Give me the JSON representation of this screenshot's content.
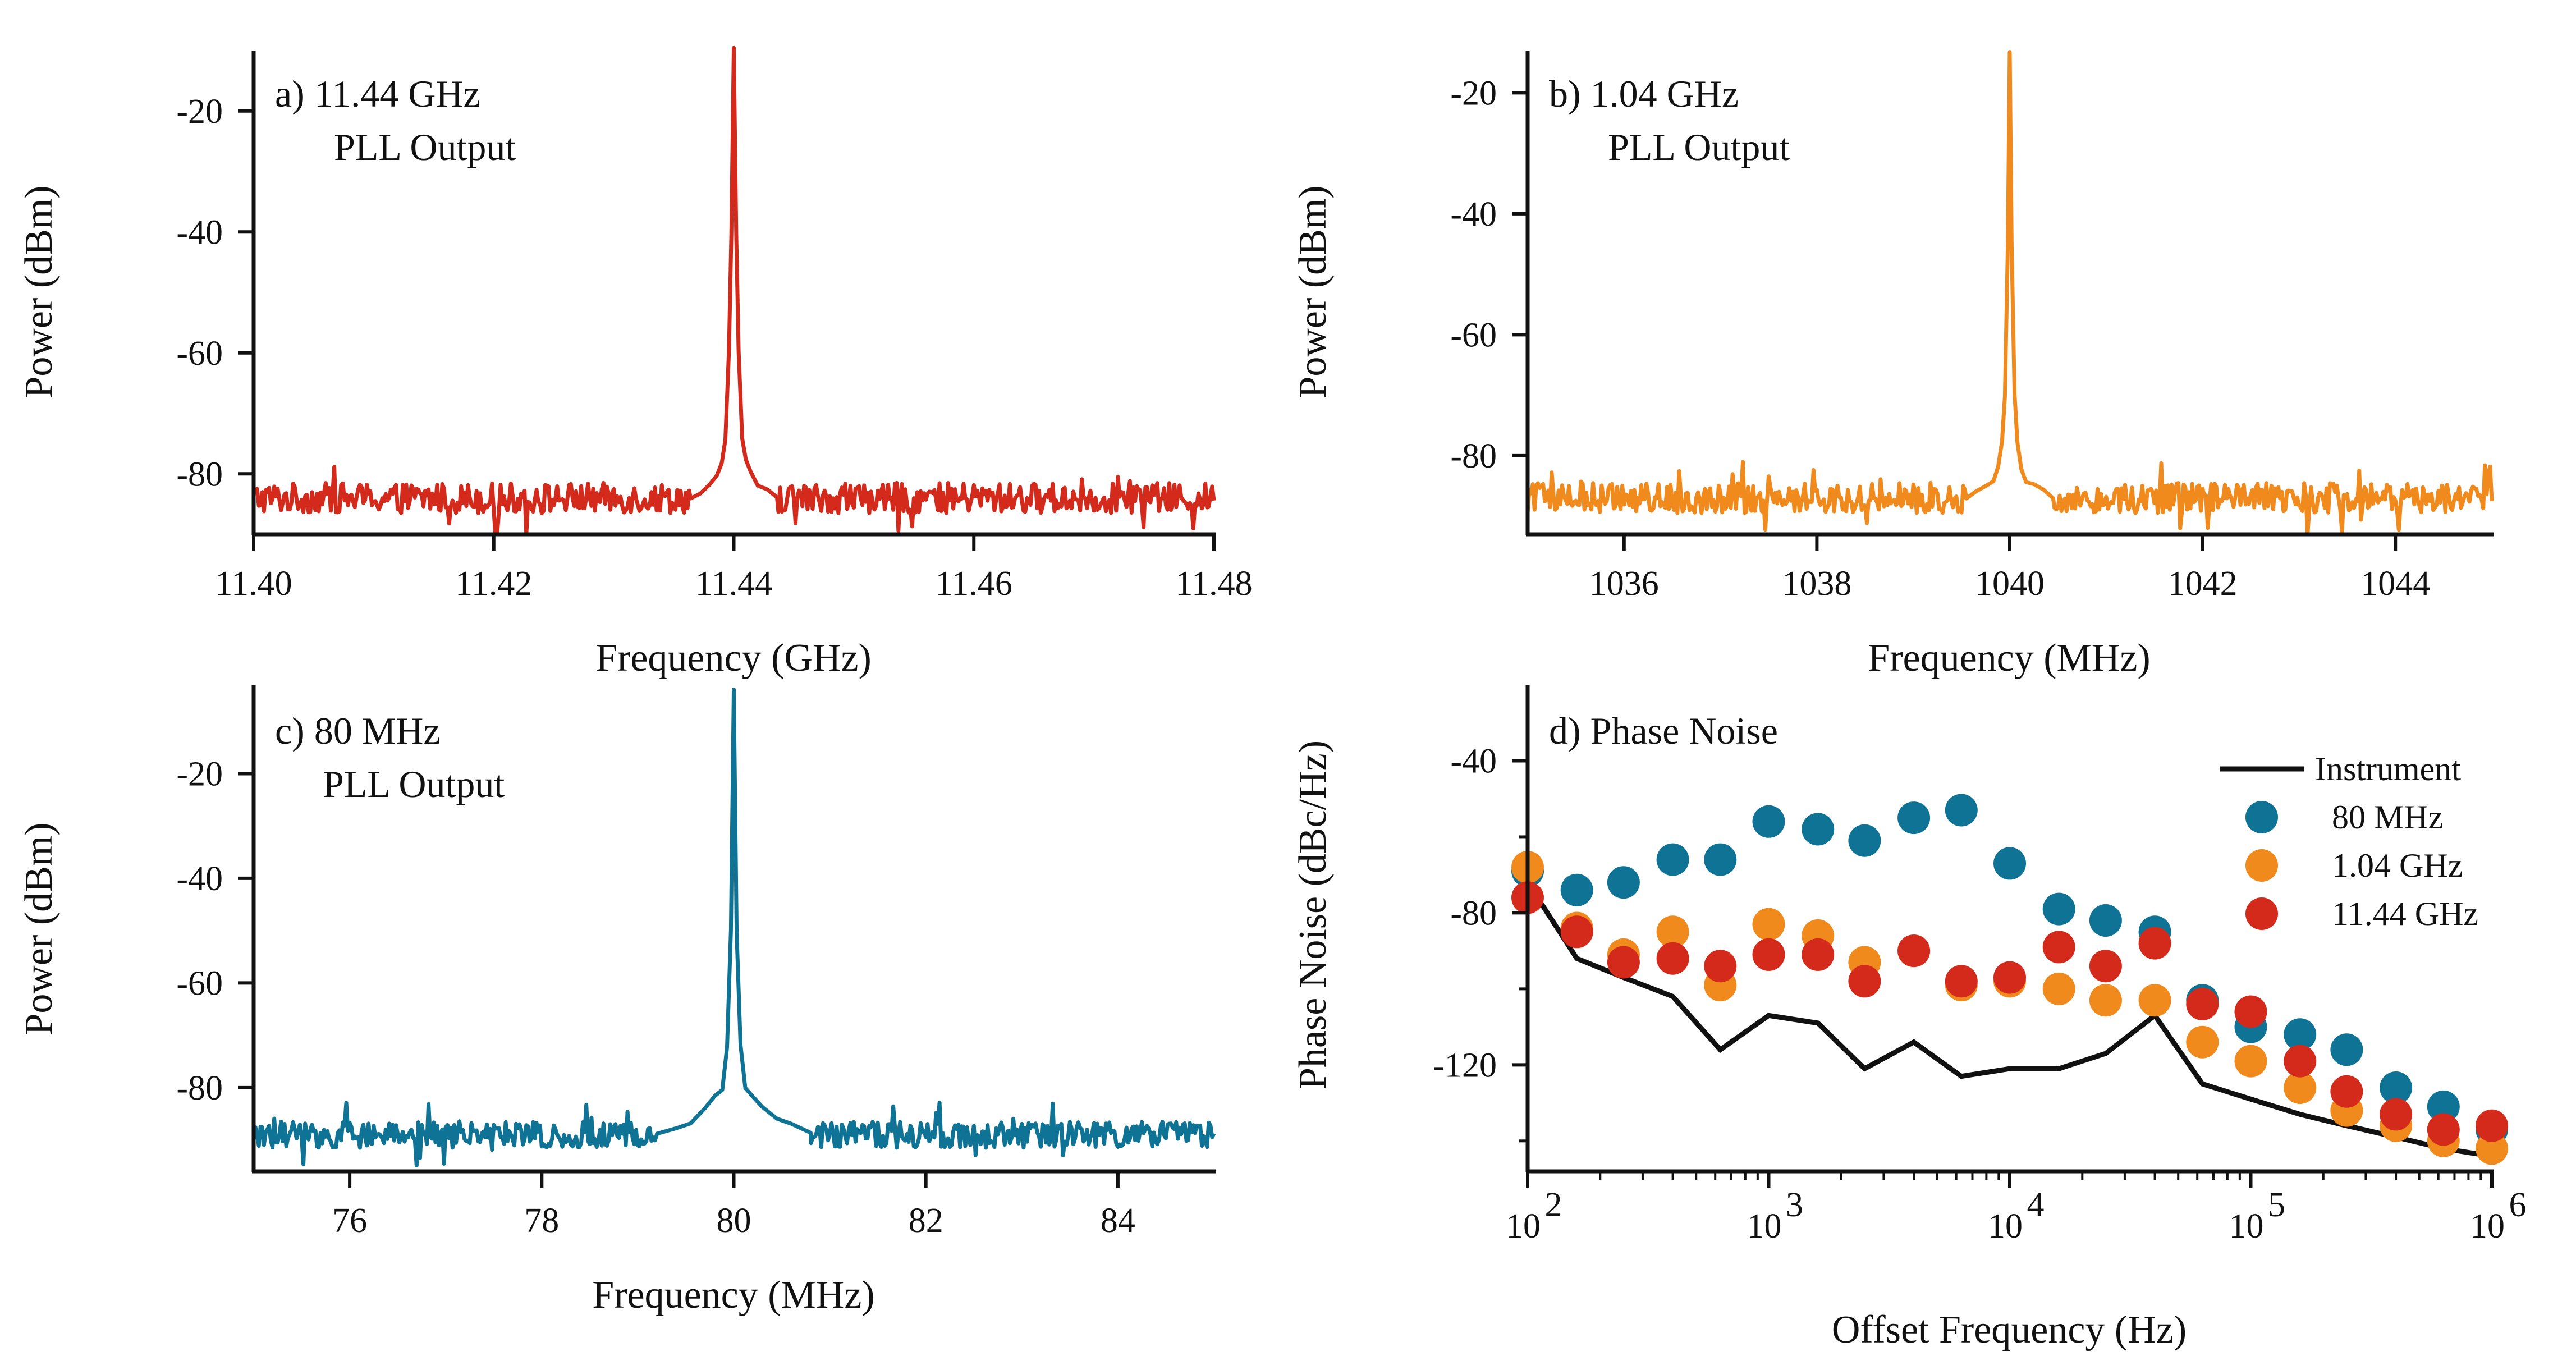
{
  "figure": {
    "colors": {
      "a": "#d42a1c",
      "b": "#f08a1d",
      "c": "#0e7394",
      "instrument": "#111111"
    }
  },
  "chart_data": [
    {
      "id": "a",
      "type": "line",
      "panel_label": "a) 11.44 GHz",
      "panel_sublabel": "PLL Output",
      "xlabel": "Frequency (GHz)",
      "ylabel": "Power (dBm)",
      "xlim": [
        11.4,
        11.48
      ],
      "ylim": [
        -90,
        -10
      ],
      "xticks": [
        11.4,
        11.42,
        11.44,
        11.46,
        11.48
      ],
      "xtick_labels": [
        "11.40",
        "11.42",
        "11.44",
        "11.46",
        "11.48"
      ],
      "yticks": [
        -80,
        -60,
        -40,
        -20
      ],
      "ytick_labels": [
        "-80",
        "-60",
        "-40",
        "-20"
      ],
      "series": [
        {
          "name": "11.44 GHz PLL Output",
          "color": "#d42a1c",
          "center": 11.44,
          "peak": -10,
          "noise_floor": -84,
          "noise_span": 2.5,
          "x": [
            11.4364,
            11.4372,
            11.438,
            11.4386,
            11.439,
            11.4393,
            11.4396,
            11.4398,
            11.44,
            11.4402,
            11.4404,
            11.4407,
            11.441,
            11.4414,
            11.442,
            11.4428,
            11.4436
          ],
          "y": [
            -84,
            -83,
            -82,
            -80,
            -78,
            -74,
            -60,
            -40,
            -10,
            -40,
            -60,
            -74,
            -78,
            -80,
            -82,
            -83,
            -84
          ]
        }
      ]
    },
    {
      "id": "b",
      "type": "line",
      "panel_label": "b) 1.04 GHz",
      "panel_sublabel": "PLL Output",
      "xlabel": "Frequency (MHz)",
      "ylabel": "Power (dBm)",
      "xlim": [
        1035,
        1045
      ],
      "ylim": [
        -93,
        -13
      ],
      "xticks": [
        1036,
        1038,
        1040,
        1042,
        1044
      ],
      "xtick_labels": [
        "1036",
        "1038",
        "1040",
        "1042",
        "1044"
      ],
      "yticks": [
        -80,
        -60,
        -40,
        -20
      ],
      "ytick_labels": [
        "-80",
        "-60",
        "-40",
        "-20"
      ],
      "series": [
        {
          "name": "1.04 GHz PLL Output",
          "color": "#f08a1d",
          "center": 1040,
          "peak": -13,
          "noise_floor": -87,
          "noise_span": 2.5,
          "x": [
            1039.55,
            1039.65,
            1039.75,
            1039.83,
            1039.88,
            1039.92,
            1039.95,
            1039.98,
            1040.0,
            1040.02,
            1040.05,
            1040.08,
            1040.12,
            1040.17,
            1040.25,
            1040.35,
            1040.45
          ],
          "y": [
            -87,
            -86,
            -85,
            -84,
            -82,
            -78,
            -70,
            -45,
            -13,
            -45,
            -70,
            -78,
            -82,
            -84,
            -85,
            -86,
            -87
          ]
        }
      ]
    },
    {
      "id": "c",
      "type": "line",
      "panel_label": "c) 80 MHz",
      "panel_sublabel": "PLL Output",
      "xlabel": "Frequency (MHz)",
      "ylabel": "Power (dBm)",
      "xlim": [
        75,
        85
      ],
      "ylim": [
        -96,
        -3
      ],
      "xticks": [
        76,
        78,
        80,
        82,
        84
      ],
      "xtick_labels": [
        "76",
        "78",
        "80",
        "82",
        "84"
      ],
      "yticks": [
        -80,
        -60,
        -40,
        -20
      ],
      "ytick_labels": [
        "-80",
        "-60",
        "-40",
        "-20"
      ],
      "series": [
        {
          "name": "80 MHz PLL Output",
          "color": "#0e7394",
          "center": 80,
          "peak": -4,
          "noise_floor": -89,
          "noise_span": 2.5,
          "x": [
            79.2,
            79.4,
            79.55,
            79.7,
            79.8,
            79.88,
            79.93,
            79.97,
            80.0,
            80.03,
            80.07,
            80.12,
            80.2,
            80.3,
            80.45,
            80.6,
            80.8
          ],
          "y": [
            -89,
            -88,
            -87,
            -84,
            -82,
            -80,
            -72,
            -50,
            -4,
            -50,
            -72,
            -80,
            -82,
            -84,
            -86,
            -87,
            -89
          ]
        }
      ]
    },
    {
      "id": "d",
      "type": "scatter",
      "panel_label": "d) Phase Noise",
      "xlabel": "Offset Frequency (Hz)",
      "ylabel": "Phase Noise (dBc/Hz)",
      "xscale": "log",
      "xlim": [
        100,
        1000000
      ],
      "ylim": [
        -148,
        -20
      ],
      "xticks": [
        100,
        1000,
        10000,
        100000,
        1000000
      ],
      "xtick_base": [
        "10",
        "10",
        "10",
        "10",
        "10"
      ],
      "xtick_exp": [
        "2",
        "3",
        "4",
        "5",
        "6"
      ],
      "yticks": [
        -40,
        -80,
        -120
      ],
      "ytick_labels": [
        "-40",
        "-80",
        "-120"
      ],
      "yminor": [
        -60,
        -100,
        -140
      ],
      "legend_position": "top-right",
      "series": [
        {
          "name": "Instrument",
          "marker": "line",
          "color": "#111111",
          "x": [
            100,
            160,
            250,
            400,
            630,
            1000,
            1600,
            2500,
            4000,
            6300,
            10000,
            16000,
            25000,
            40000,
            63000,
            100000,
            160000,
            250000,
            400000,
            630000,
            1000000
          ],
          "y": [
            -72,
            -92,
            -97,
            -102,
            -116,
            -107,
            -109,
            -121,
            -114,
            -123,
            -121,
            -121,
            -117,
            -107,
            -125,
            -129,
            -133,
            -136,
            -139,
            -142,
            -144
          ]
        },
        {
          "name": "80 MHz",
          "marker": "circle",
          "color": "#0e7394",
          "x": [
            100,
            160,
            250,
            400,
            630,
            1000,
            1600,
            2500,
            4000,
            6300,
            10000,
            16000,
            25000,
            40000,
            63000,
            100000,
            160000,
            250000,
            400000,
            630000,
            1000000
          ],
          "y": [
            -69,
            -74,
            -72,
            -66,
            -66,
            -56,
            -58,
            -61,
            -55,
            -53,
            -67,
            -79,
            -82,
            -85,
            -103,
            -110,
            -112,
            -116,
            -126,
            -131,
            -137
          ]
        },
        {
          "name": "1.04 GHz",
          "marker": "circle",
          "color": "#f08a1d",
          "x": [
            100,
            160,
            250,
            400,
            630,
            1000,
            1600,
            2500,
            4000,
            6300,
            10000,
            16000,
            25000,
            40000,
            63000,
            100000,
            160000,
            250000,
            400000,
            630000,
            1000000
          ],
          "y": [
            -68,
            -84,
            -91,
            -85,
            -99,
            -83,
            -86,
            -93,
            -90,
            -99,
            -98,
            -100,
            -103,
            -103,
            -114,
            -119,
            -126,
            -132,
            -136,
            -140,
            -142
          ]
        },
        {
          "name": "11.44 GHz",
          "marker": "circle",
          "color": "#d42a1c",
          "x": [
            100,
            160,
            250,
            400,
            630,
            1000,
            1600,
            2500,
            4000,
            6300,
            10000,
            16000,
            25000,
            40000,
            63000,
            100000,
            160000,
            250000,
            400000,
            630000,
            1000000
          ],
          "y": [
            -76,
            -85,
            -93,
            -92,
            -94,
            -91,
            -91,
            -98,
            -90,
            -98,
            -97,
            -89,
            -94,
            -88,
            -104,
            -106,
            -119,
            -127,
            -133,
            -137,
            -136
          ]
        }
      ]
    }
  ]
}
